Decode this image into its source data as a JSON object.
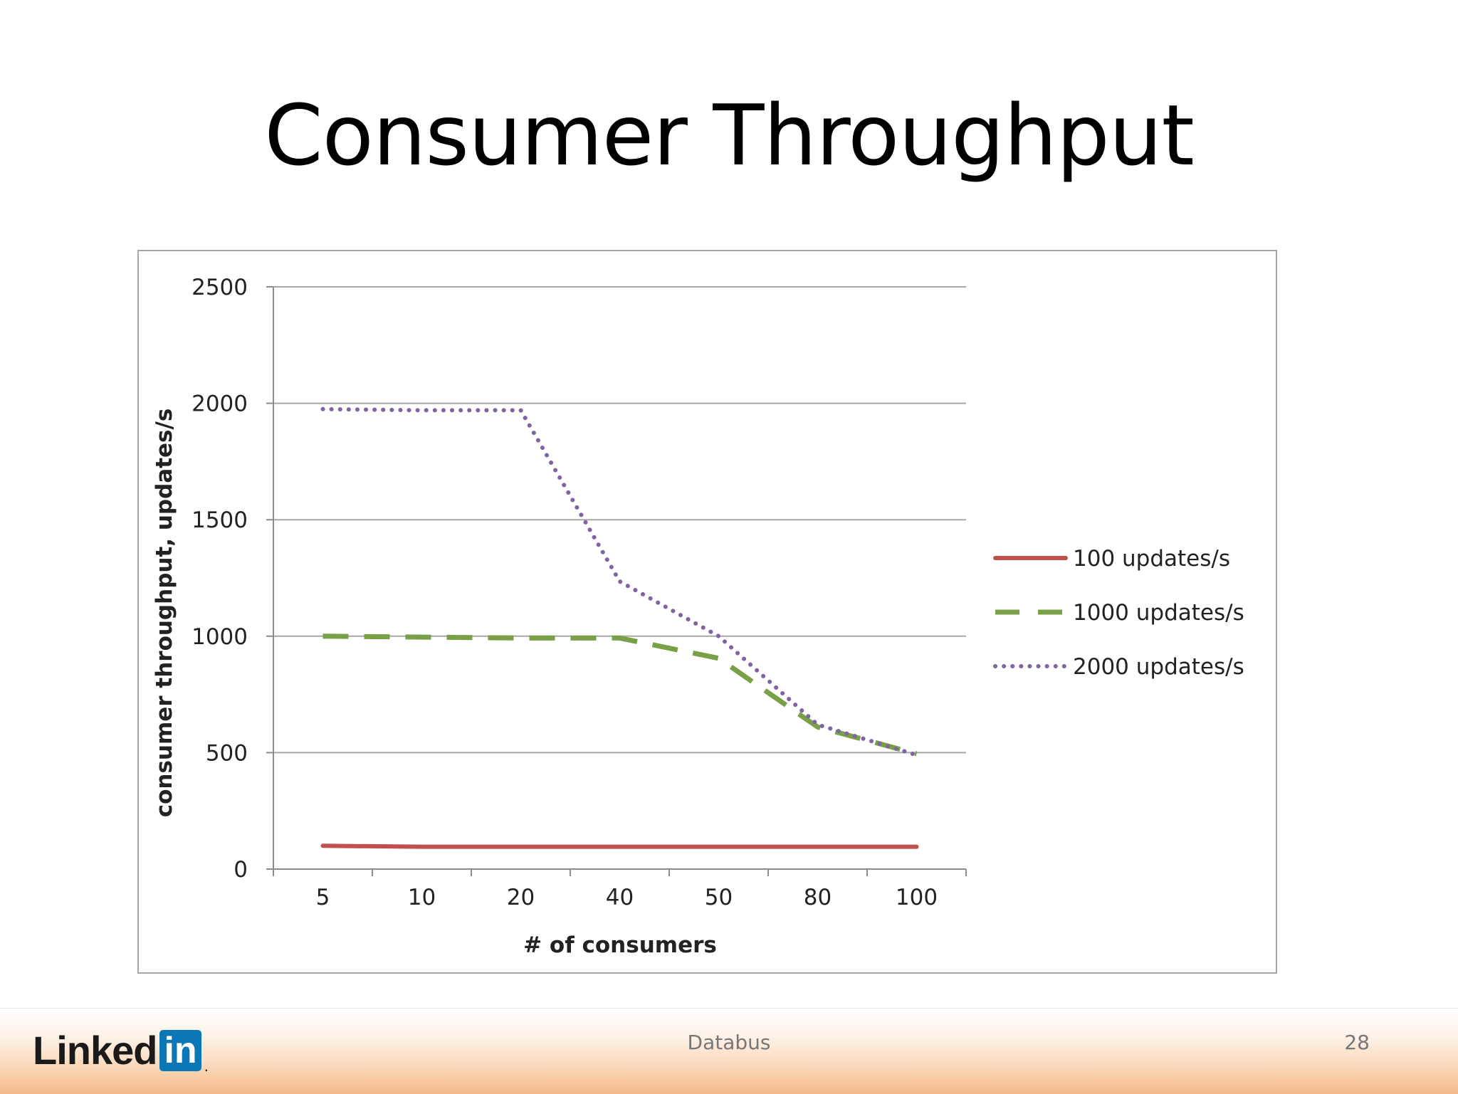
{
  "slide": {
    "title": "Consumer Throughput",
    "footer_text": "Databus",
    "page_number": "28",
    "logo": {
      "text": "Linked",
      "box_text": "in",
      "suffix": "."
    }
  },
  "chart_data": {
    "type": "line",
    "title": "",
    "xlabel": "# of consumers",
    "ylabel": "consumer throughput,  updates/s",
    "categories": [
      "5",
      "10",
      "20",
      "40",
      "50",
      "80",
      "100"
    ],
    "ylim": [
      0,
      2500
    ],
    "yticks": [
      0,
      500,
      1000,
      1500,
      2000,
      2500
    ],
    "grid": true,
    "legend_position": "right",
    "series": [
      {
        "name": "100 updates/s",
        "style": "solid",
        "color": "#c0504d",
        "values": [
          100,
          96,
          96,
          96,
          96,
          96,
          96
        ]
      },
      {
        "name": "1000 updates/s",
        "style": "dashed",
        "color": "#77a047",
        "values": [
          1000,
          996,
          992,
          992,
          905,
          610,
          495
        ]
      },
      {
        "name": "2000 updates/s",
        "style": "dotted",
        "color": "#8064a2",
        "values": [
          1975,
          1970,
          1970,
          1235,
          1000,
          620,
          490
        ]
      }
    ]
  }
}
